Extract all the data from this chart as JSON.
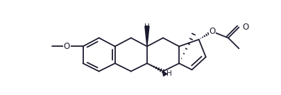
{
  "bg_color": "#ffffff",
  "line_color": "#1a1a2e",
  "lw": 1.3,
  "figsize": [
    4.06,
    1.38
  ],
  "dpi": 100,
  "xlim": [
    0.0,
    4.06
  ],
  "ylim": [
    0.0,
    1.38
  ]
}
